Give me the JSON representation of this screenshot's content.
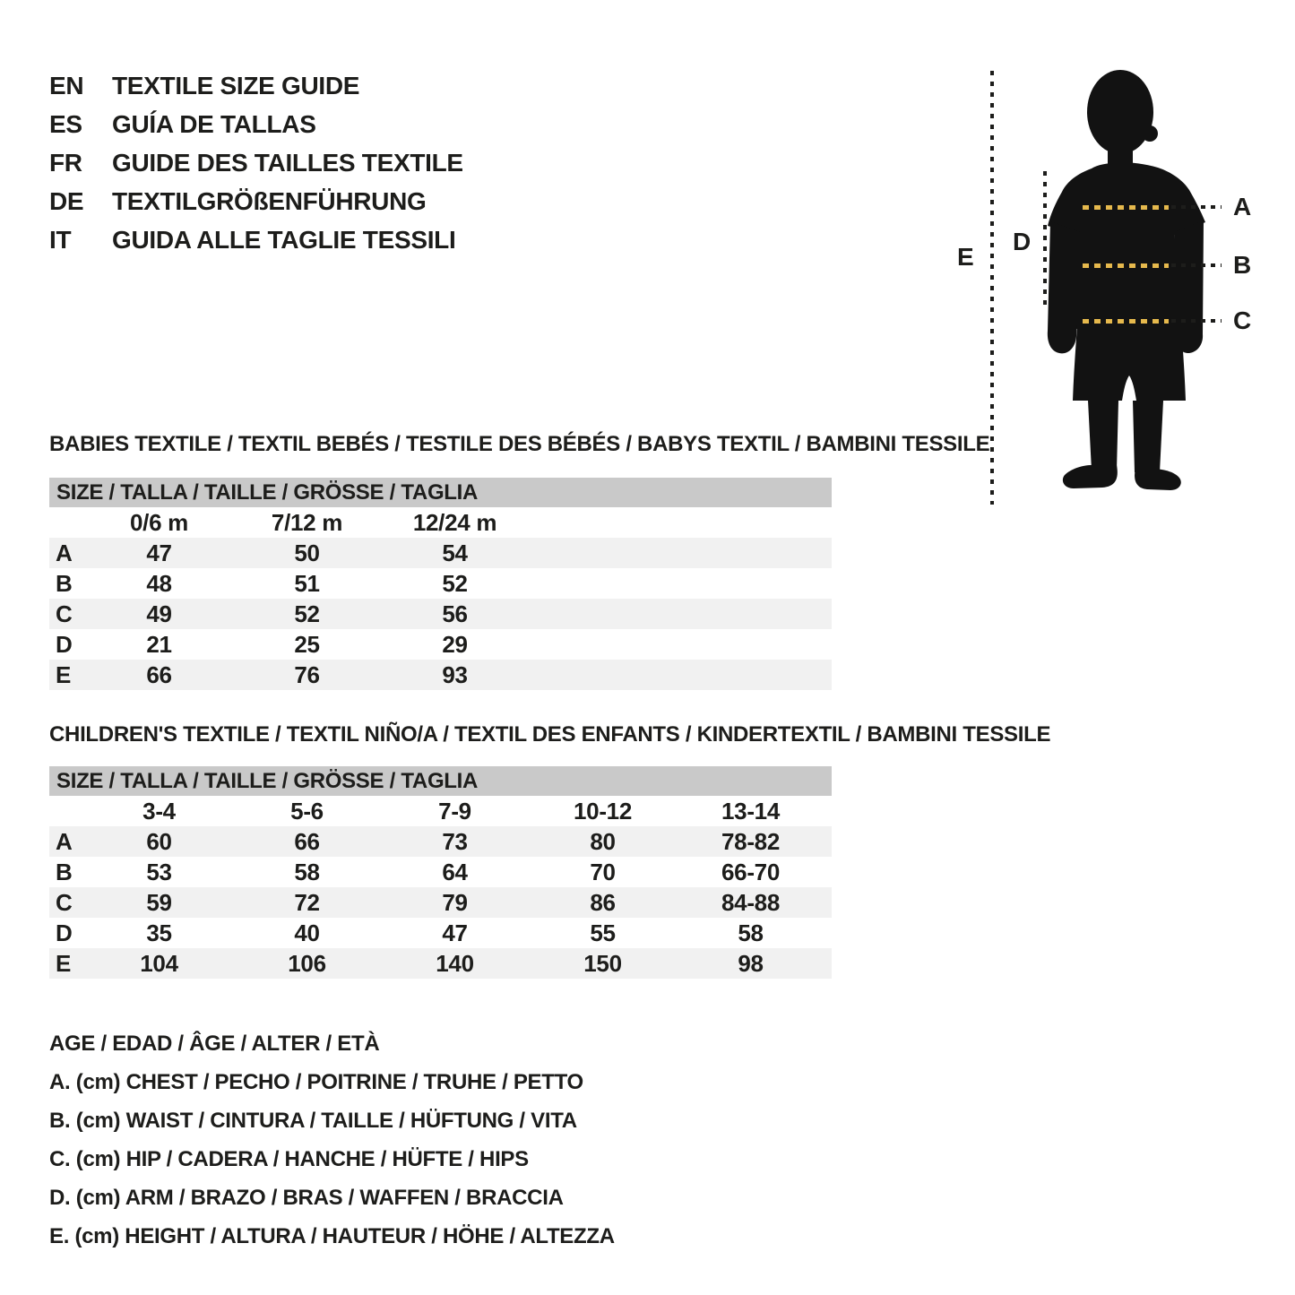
{
  "languages": [
    {
      "code": "EN",
      "title": "TEXTILE SIZE GUIDE"
    },
    {
      "code": "ES",
      "title": "GUÍA DE TALLAS"
    },
    {
      "code": "FR",
      "title": "GUIDE DES TAILLES TEXTILE"
    },
    {
      "code": "DE",
      "title": "TEXTILGRÖßENFÜHRUNG"
    },
    {
      "code": "IT",
      "title": "GUIDA ALLE TAGLIE TESSILI"
    }
  ],
  "figure": {
    "labels": {
      "a": "A",
      "b": "B",
      "c": "C",
      "d": "D",
      "e": "E"
    }
  },
  "babies_table": {
    "title": "BABIES TEXTILE / TEXTIL BEBÉS / TESTILE DES BÉBÉS / BABYS TEXTIL / BAMBINI TESSILE",
    "size_header": "SIZE / TALLA / TAILLE / GRÖSSE / TAGLIA",
    "columns": [
      "0/6 m",
      "7/12 m",
      "12/24 m"
    ],
    "rows": [
      {
        "label": "A",
        "values": [
          "47",
          "50",
          "54"
        ]
      },
      {
        "label": "B",
        "values": [
          "48",
          "51",
          "52"
        ]
      },
      {
        "label": "C",
        "values": [
          "49",
          "52",
          "56"
        ]
      },
      {
        "label": "D",
        "values": [
          "21",
          "25",
          "29"
        ]
      },
      {
        "label": "E",
        "values": [
          "66",
          "76",
          "93"
        ]
      }
    ]
  },
  "children_table": {
    "title": "CHILDREN'S TEXTILE / TEXTIL NIÑO/A / TEXTIL DES ENFANTS / KINDERTEXTIL / BAMBINI TESSILE",
    "size_header": "SIZE / TALLA / TAILLE / GRÖSSE / TAGLIA",
    "columns": [
      "3-4",
      "5-6",
      "7-9",
      "10-12",
      "13-14"
    ],
    "rows": [
      {
        "label": "A",
        "values": [
          "60",
          "66",
          "73",
          "80",
          "78-82"
        ]
      },
      {
        "label": "B",
        "values": [
          "53",
          "58",
          "64",
          "70",
          "66-70"
        ]
      },
      {
        "label": "C",
        "values": [
          "59",
          "72",
          "79",
          "86",
          "84-88"
        ]
      },
      {
        "label": "D",
        "values": [
          "35",
          "40",
          "47",
          "55",
          "58"
        ]
      },
      {
        "label": "E",
        "values": [
          "104",
          "106",
          "140",
          "150",
          "98"
        ]
      }
    ]
  },
  "legend": {
    "lines": [
      "AGE / EDAD / ÂGE / ALTER / ETÀ",
      "A. (cm) CHEST / PECHO / POITRINE / TRUHE / PETTO",
      "B. (cm) WAIST / CINTURA / TAILLE / HÜFTUNG / VITA",
      "C. (cm) HIP / CADERA / HANCHE / HÜFTE / HIPS",
      "D. (cm) ARM / BRAZO / BRAS / WAFFEN / BRACCIA",
      "E. (cm) HEIGHT / ALTURA / HAUTEUR / HÖHE / ALTEZZA"
    ]
  },
  "colors": {
    "ink": "#1d1d1b",
    "accent_yellow": "#e6b94d",
    "band_gray": "#c9c9c9",
    "row_alt_gray": "#f1f1f1",
    "silhouette": "#121212"
  }
}
